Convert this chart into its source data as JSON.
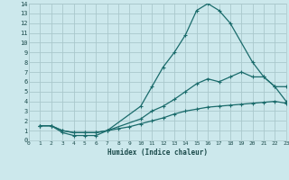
{
  "xlabel": "Humidex (Indice chaleur)",
  "bg_color": "#cce8ec",
  "grid_color": "#aac8cc",
  "line_color": "#1a6b6b",
  "xlim": [
    0,
    23
  ],
  "ylim": [
    0,
    14
  ],
  "xticks": [
    0,
    1,
    2,
    3,
    4,
    5,
    6,
    7,
    8,
    9,
    10,
    11,
    12,
    13,
    14,
    15,
    16,
    17,
    18,
    19,
    20,
    21,
    22,
    23
  ],
  "yticks": [
    0,
    1,
    2,
    3,
    4,
    5,
    6,
    7,
    8,
    9,
    10,
    11,
    12,
    13,
    14
  ],
  "series1_x": [
    1,
    2,
    3,
    4,
    5,
    6,
    7,
    10,
    11,
    12,
    13,
    14,
    15,
    16,
    17,
    18,
    20,
    21,
    22,
    23
  ],
  "series1_y": [
    1.5,
    1.5,
    0.8,
    0.5,
    0.5,
    0.5,
    1.0,
    3.5,
    5.5,
    7.5,
    9.0,
    10.8,
    13.3,
    14.0,
    13.3,
    12.0,
    8.0,
    6.5,
    5.5,
    5.5
  ],
  "series2_x": [
    1,
    2,
    3,
    4,
    5,
    6,
    7,
    10,
    11,
    12,
    13,
    14,
    15,
    16,
    17,
    18,
    19,
    20,
    21,
    22,
    23
  ],
  "series2_y": [
    1.5,
    1.5,
    1.0,
    0.8,
    0.8,
    0.8,
    1.0,
    2.2,
    3.0,
    3.5,
    4.2,
    5.0,
    5.8,
    6.3,
    6.0,
    6.5,
    7.0,
    6.5,
    6.5,
    5.5,
    4.0
  ],
  "series3_x": [
    1,
    2,
    3,
    4,
    5,
    6,
    7,
    8,
    9,
    10,
    11,
    12,
    13,
    14,
    15,
    16,
    17,
    18,
    19,
    20,
    21,
    22,
    23
  ],
  "series3_y": [
    1.5,
    1.5,
    1.0,
    0.8,
    0.8,
    0.8,
    1.0,
    1.2,
    1.4,
    1.7,
    2.0,
    2.3,
    2.7,
    3.0,
    3.2,
    3.4,
    3.5,
    3.6,
    3.7,
    3.8,
    3.9,
    4.0,
    3.8
  ]
}
